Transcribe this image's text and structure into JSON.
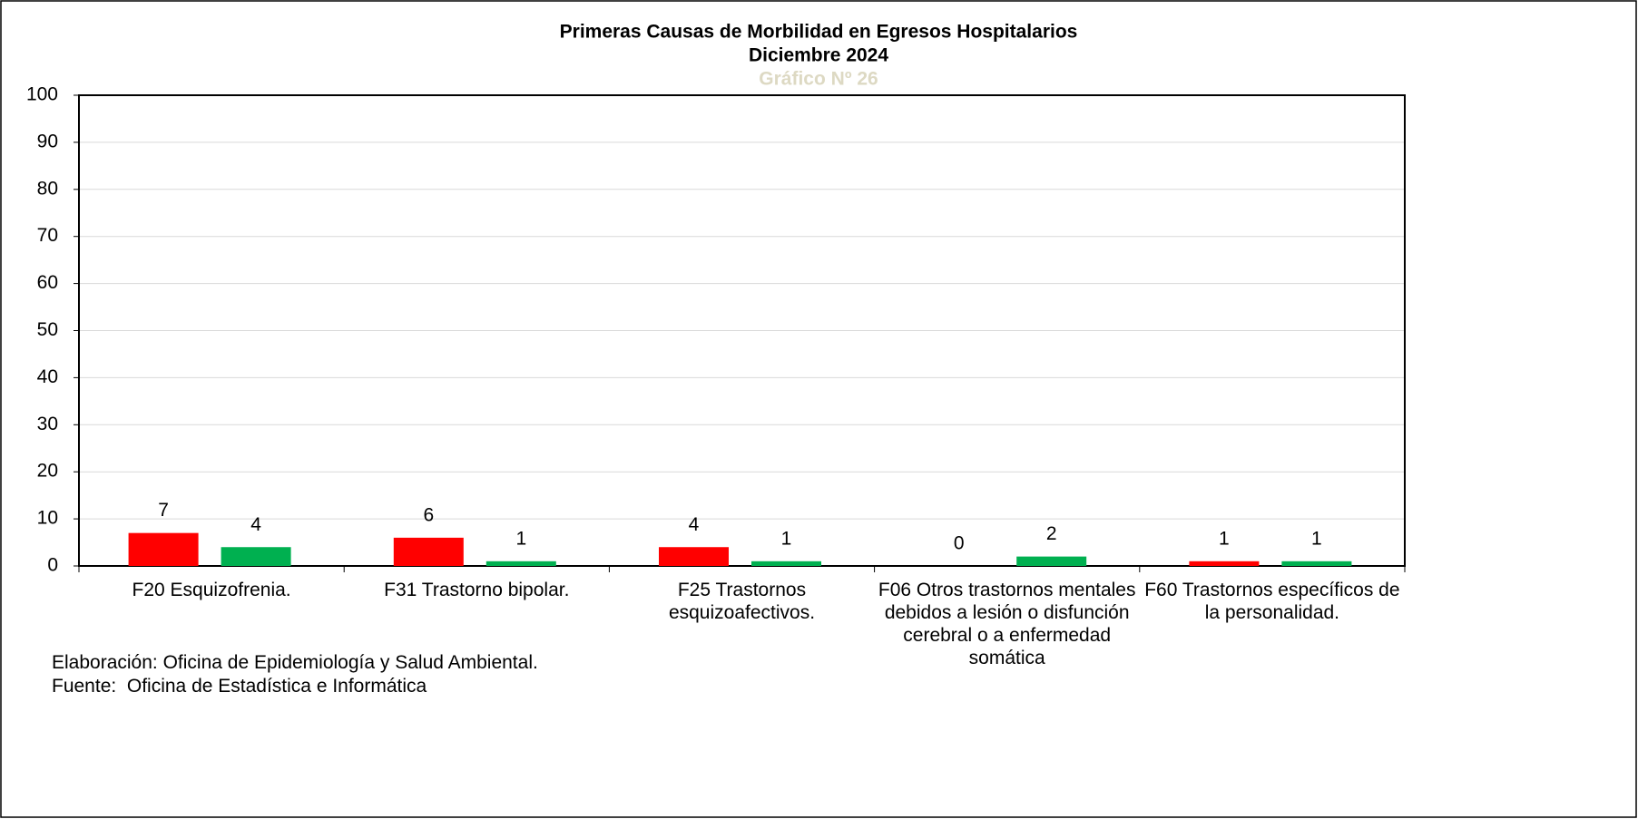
{
  "chart_data": {
    "type": "bar",
    "title": "Primeras Causas de Morbilidad en Egresos Hospitalarios",
    "subtitle": "Diciembre 2024",
    "chart_number": "Gráfico Nº 26",
    "categories": [
      "F20 Esquizofrenia.",
      "F31 Trastorno bipolar.",
      "F25 Trastornos esquizoafectivos.",
      "F06 Otros trastornos mentales debidos a lesión o disfunción cerebral o a enfermedad somática",
      "F60 Trastornos específicos de la personalidad."
    ],
    "series": [
      {
        "color": "#ff0000",
        "values": [
          7,
          6,
          4,
          0,
          1
        ]
      },
      {
        "color": "#00b050",
        "values": [
          4,
          1,
          1,
          2,
          1
        ]
      }
    ],
    "ylim": [
      0,
      100
    ],
    "yticks": [
      0,
      10,
      20,
      30,
      40,
      50,
      60,
      70,
      80,
      90,
      100
    ],
    "grid": true,
    "footer": [
      "Elaboración: Oficina de Epidemiología y Salud Ambiental.",
      "Fuente:  Oficina de Estadística e Informática"
    ]
  }
}
